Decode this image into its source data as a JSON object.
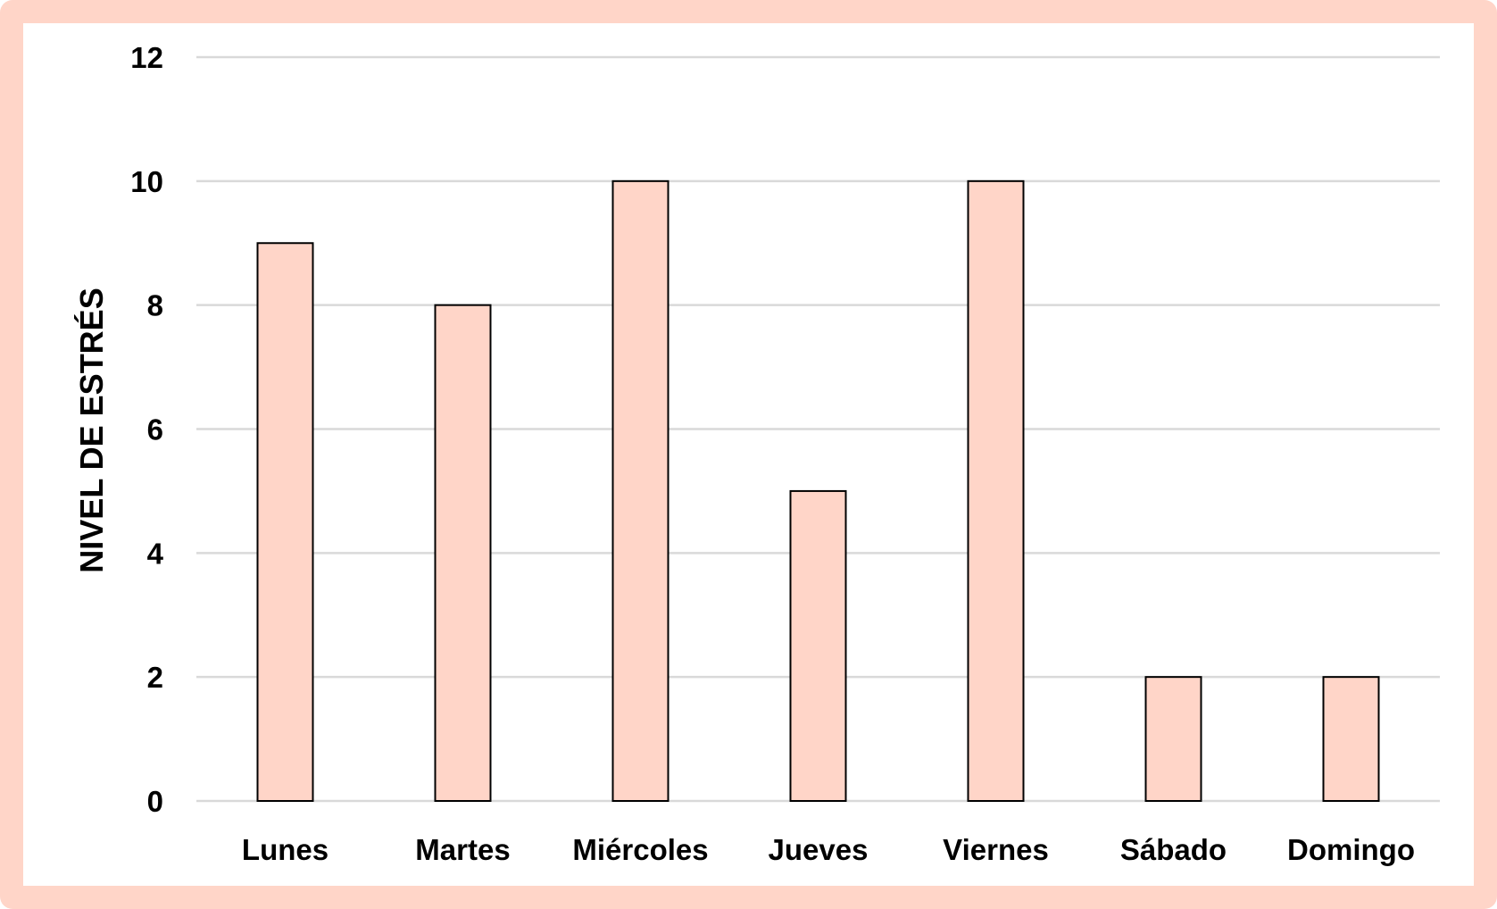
{
  "chart_data": {
    "type": "bar",
    "categories": [
      "Lunes",
      "Martes",
      "Miércoles",
      "Jueves",
      "Viernes",
      "Sábado",
      "Domingo"
    ],
    "values": [
      9,
      8,
      10,
      5,
      10,
      2,
      2
    ],
    "title": "",
    "xlabel": "",
    "ylabel": "NIVEL DE ESTRÉS",
    "ylim": [
      0,
      12
    ],
    "yticks": [
      0,
      2,
      4,
      6,
      8,
      10,
      12
    ],
    "grid": true,
    "legend": "none",
    "bar_color": "#FFD5C8",
    "bar_edge_color": "#000000",
    "frame_color": "#FFD5C8",
    "grid_color": "#D9D9D9"
  }
}
